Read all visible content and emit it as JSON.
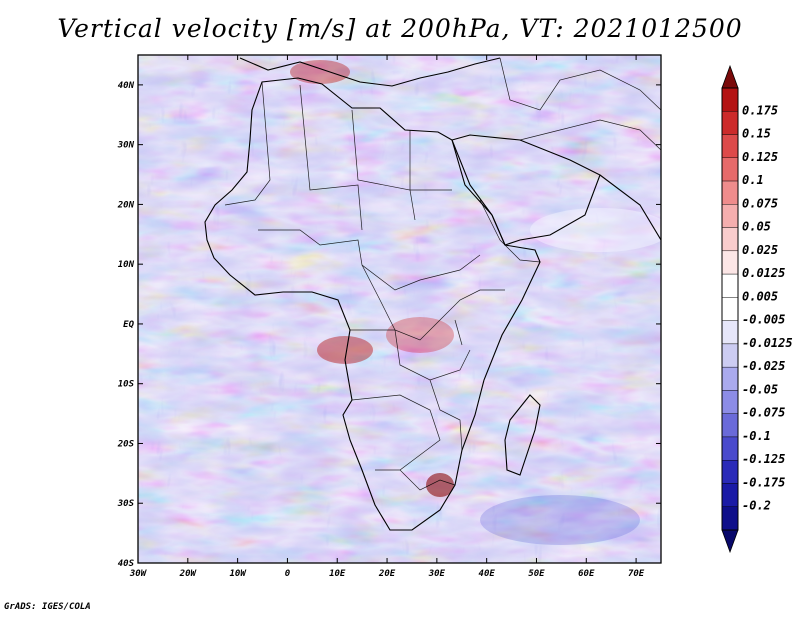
{
  "title": "Vertical velocity [m/s] at 200hPa, VT: 2021012500",
  "credit": "GrADS: IGES/COLA",
  "map": {
    "region": "Africa",
    "lon_range": [
      -30,
      75
    ],
    "lat_range": [
      -40,
      45
    ],
    "lat_ticks": [
      "40N",
      "30N",
      "20N",
      "10N",
      "EQ",
      "10S",
      "20S",
      "30S",
      "40S"
    ],
    "lat_values": [
      40,
      30,
      20,
      10,
      0,
      -10,
      -20,
      -30,
      -40
    ],
    "lon_ticks": [
      "30W",
      "20W",
      "10W",
      "0",
      "10E",
      "20E",
      "30E",
      "40E",
      "50E",
      "60E",
      "70E"
    ],
    "lon_values": [
      -30,
      -20,
      -10,
      0,
      10,
      20,
      30,
      40,
      50,
      60,
      70
    ]
  },
  "colorbar": {
    "labels": [
      "0.175",
      "0.15",
      "0.125",
      "0.1",
      "0.075",
      "0.05",
      "0.025",
      "0.0125",
      "0.005",
      "-0.005",
      "-0.0125",
      "-0.025",
      "-0.05",
      "-0.075",
      "-0.1",
      "-0.125",
      "-0.175",
      "-0.2"
    ],
    "colors": [
      "#b31212",
      "#cc2a2a",
      "#dd4a4a",
      "#e66a6a",
      "#ef8c8c",
      "#f5aeae",
      "#f9cccc",
      "#fce6e6",
      "#ffffff",
      "#ffffff",
      "#e6e6f9",
      "#ccccf2",
      "#aaaaee",
      "#8c8ce6",
      "#6a6ad9",
      "#4a4acc",
      "#2a2ab8",
      "#1a1aa6",
      "#0e0e8a"
    ],
    "top_color": "#7a0a0a",
    "bottom_color": "#08086a"
  }
}
